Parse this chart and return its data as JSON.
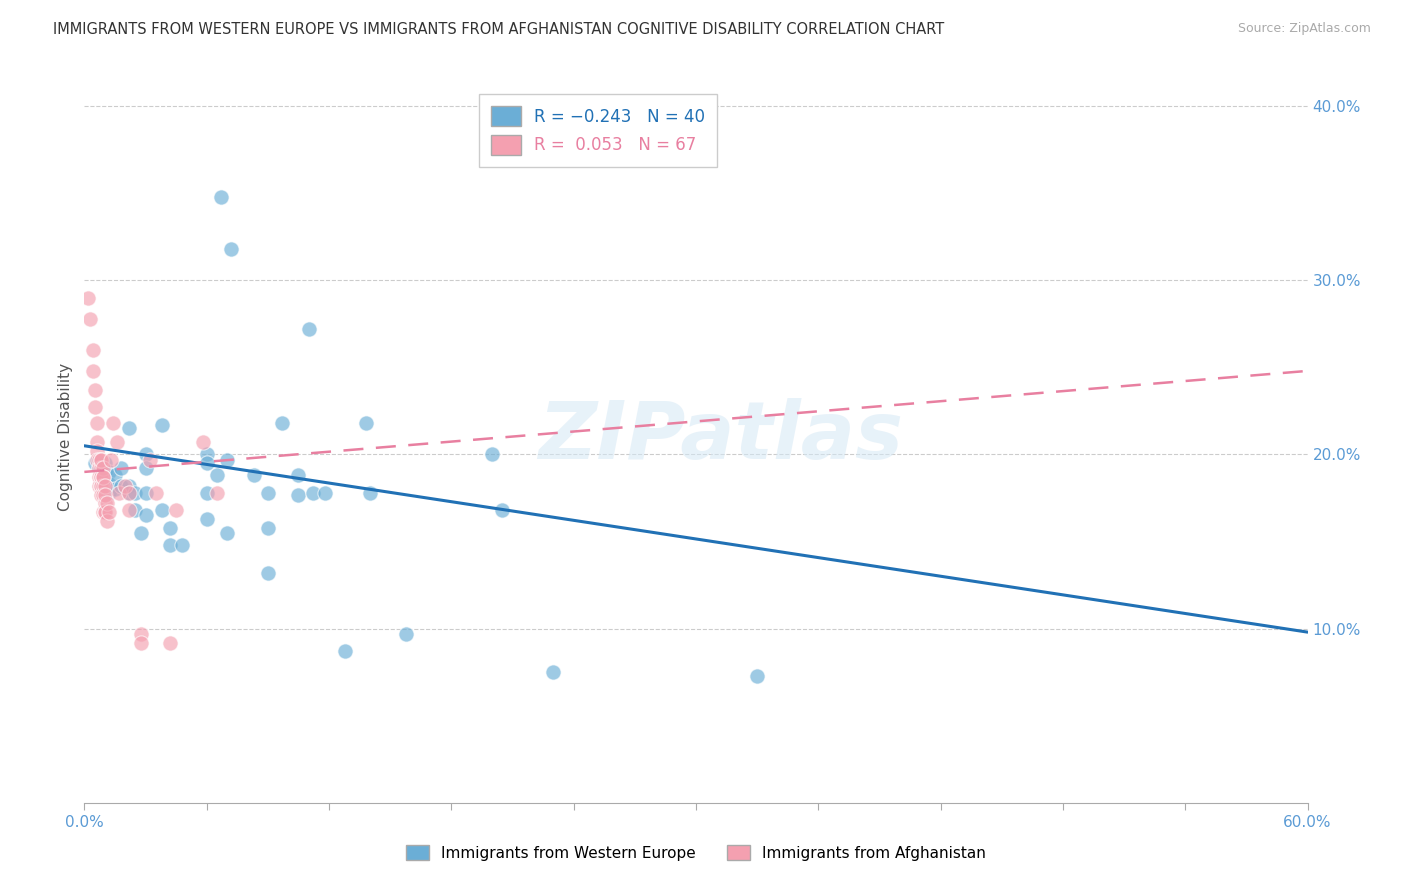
{
  "title": "IMMIGRANTS FROM WESTERN EUROPE VS IMMIGRANTS FROM AFGHANISTAN COGNITIVE DISABILITY CORRELATION CHART",
  "source": "Source: ZipAtlas.com",
  "ylabel": "Cognitive Disability",
  "xlim": [
    0.0,
    0.6
  ],
  "ylim": [
    0.0,
    0.42
  ],
  "watermark": "ZIPatlas",
  "legend_label1": "Immigrants from Western Europe",
  "legend_label2": "Immigrants from Afghanistan",
  "blue_color": "#6baed6",
  "pink_color": "#f4a0b0",
  "trendline_blue": [
    0.0,
    0.205,
    0.6,
    0.098
  ],
  "trendline_pink": [
    0.0,
    0.19,
    0.6,
    0.248
  ],
  "blue_points": [
    [
      0.005,
      0.195
    ],
    [
      0.007,
      0.192
    ],
    [
      0.008,
      0.188
    ],
    [
      0.008,
      0.185
    ],
    [
      0.01,
      0.195
    ],
    [
      0.01,
      0.19
    ],
    [
      0.01,
      0.185
    ],
    [
      0.01,
      0.18
    ],
    [
      0.012,
      0.19
    ],
    [
      0.012,
      0.183
    ],
    [
      0.012,
      0.178
    ],
    [
      0.015,
      0.188
    ],
    [
      0.015,
      0.18
    ],
    [
      0.018,
      0.192
    ],
    [
      0.018,
      0.182
    ],
    [
      0.022,
      0.215
    ],
    [
      0.022,
      0.182
    ],
    [
      0.022,
      0.178
    ],
    [
      0.025,
      0.178
    ],
    [
      0.025,
      0.168
    ],
    [
      0.028,
      0.155
    ],
    [
      0.03,
      0.2
    ],
    [
      0.03,
      0.192
    ],
    [
      0.03,
      0.178
    ],
    [
      0.03,
      0.165
    ],
    [
      0.038,
      0.217
    ],
    [
      0.038,
      0.168
    ],
    [
      0.042,
      0.158
    ],
    [
      0.042,
      0.148
    ],
    [
      0.048,
      0.148
    ],
    [
      0.06,
      0.2
    ],
    [
      0.06,
      0.195
    ],
    [
      0.06,
      0.178
    ],
    [
      0.06,
      0.163
    ],
    [
      0.065,
      0.188
    ],
    [
      0.067,
      0.348
    ],
    [
      0.07,
      0.197
    ],
    [
      0.07,
      0.155
    ],
    [
      0.072,
      0.318
    ],
    [
      0.083,
      0.188
    ],
    [
      0.09,
      0.178
    ],
    [
      0.09,
      0.158
    ],
    [
      0.09,
      0.132
    ],
    [
      0.097,
      0.218
    ],
    [
      0.105,
      0.188
    ],
    [
      0.105,
      0.177
    ],
    [
      0.11,
      0.272
    ],
    [
      0.112,
      0.178
    ],
    [
      0.118,
      0.178
    ],
    [
      0.128,
      0.087
    ],
    [
      0.138,
      0.218
    ],
    [
      0.14,
      0.178
    ],
    [
      0.158,
      0.097
    ],
    [
      0.2,
      0.2
    ],
    [
      0.205,
      0.168
    ],
    [
      0.23,
      0.075
    ],
    [
      0.33,
      0.073
    ]
  ],
  "pink_points": [
    [
      0.002,
      0.29
    ],
    [
      0.003,
      0.278
    ],
    [
      0.004,
      0.26
    ],
    [
      0.004,
      0.248
    ],
    [
      0.005,
      0.237
    ],
    [
      0.005,
      0.227
    ],
    [
      0.006,
      0.218
    ],
    [
      0.006,
      0.207
    ],
    [
      0.006,
      0.202
    ],
    [
      0.006,
      0.197
    ],
    [
      0.007,
      0.197
    ],
    [
      0.007,
      0.192
    ],
    [
      0.007,
      0.187
    ],
    [
      0.007,
      0.182
    ],
    [
      0.008,
      0.197
    ],
    [
      0.008,
      0.192
    ],
    [
      0.008,
      0.187
    ],
    [
      0.008,
      0.182
    ],
    [
      0.008,
      0.197
    ],
    [
      0.008,
      0.187
    ],
    [
      0.008,
      0.182
    ],
    [
      0.008,
      0.177
    ],
    [
      0.009,
      0.192
    ],
    [
      0.009,
      0.187
    ],
    [
      0.009,
      0.182
    ],
    [
      0.009,
      0.187
    ],
    [
      0.009,
      0.177
    ],
    [
      0.009,
      0.167
    ],
    [
      0.01,
      0.182
    ],
    [
      0.01,
      0.172
    ],
    [
      0.01,
      0.167
    ],
    [
      0.01,
      0.177
    ],
    [
      0.01,
      0.167
    ],
    [
      0.011,
      0.172
    ],
    [
      0.011,
      0.162
    ],
    [
      0.012,
      0.167
    ],
    [
      0.013,
      0.197
    ],
    [
      0.014,
      0.218
    ],
    [
      0.016,
      0.207
    ],
    [
      0.017,
      0.178
    ],
    [
      0.02,
      0.182
    ],
    [
      0.022,
      0.178
    ],
    [
      0.022,
      0.168
    ],
    [
      0.028,
      0.097
    ],
    [
      0.028,
      0.092
    ],
    [
      0.032,
      0.197
    ],
    [
      0.035,
      0.178
    ],
    [
      0.042,
      0.092
    ],
    [
      0.045,
      0.168
    ],
    [
      0.058,
      0.207
    ],
    [
      0.065,
      0.178
    ]
  ]
}
